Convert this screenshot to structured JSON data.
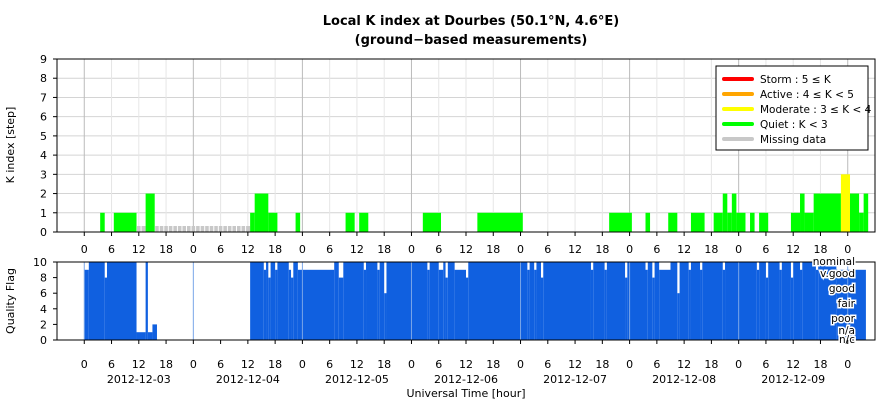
{
  "chart_data": [
    {
      "type": "bar",
      "title": "Local K index at Dourbes (50.1°N, 4.6°E)",
      "subtitle": "(ground−based measurements)",
      "ylabel": "K index [step]",
      "ylim": [
        0,
        9
      ],
      "yticks": [
        "0",
        "1",
        "2",
        "3",
        "4",
        "5",
        "6",
        "7",
        "8",
        "9"
      ],
      "x_range_hours": [
        -6,
        174
      ],
      "hour_ticks": [
        "0",
        "6",
        "12",
        "18",
        "0",
        "6",
        "12",
        "18",
        "0",
        "6",
        "12",
        "18",
        "0",
        "6",
        "12",
        "18",
        "0",
        "6",
        "12",
        "18",
        "0",
        "6",
        "12",
        "18",
        "0",
        "6",
        "12",
        "18",
        "0"
      ],
      "grid": true,
      "legend_position": "top-right",
      "legend": [
        {
          "label": "Storm : 5 ≤ K",
          "color": "#ff0000"
        },
        {
          "label": "Active : 4 ≤ K < 5",
          "color": "#ffa500"
        },
        {
          "label": "Moderate : 3 ≤ K < 4",
          "color": "#ffff00"
        },
        {
          "label": "Quiet : K < 3",
          "color": "#00ff00"
        },
        {
          "label": "Missing data",
          "color": "#c8c8c8"
        }
      ],
      "k_bars": [
        {
          "start": 3.5,
          "end": 4.5,
          "k": 1
        },
        {
          "start": 6.5,
          "end": 11.5,
          "k": 1
        },
        {
          "start": 13.5,
          "end": 15.5,
          "k": 2
        },
        {
          "start": 36.5,
          "end": 37.5,
          "k": 1
        },
        {
          "start": 37.5,
          "end": 40.5,
          "k": 2
        },
        {
          "start": 40.5,
          "end": 42.5,
          "k": 1
        },
        {
          "start": 46.5,
          "end": 47.5,
          "k": 1
        },
        {
          "start": 57.5,
          "end": 59.5,
          "k": 1
        },
        {
          "start": 60.5,
          "end": 62.5,
          "k": 1
        },
        {
          "start": 74.5,
          "end": 78.5,
          "k": 1
        },
        {
          "start": 86.5,
          "end": 96.5,
          "k": 1
        },
        {
          "start": 115.5,
          "end": 120.5,
          "k": 1
        },
        {
          "start": 123.5,
          "end": 124.5,
          "k": 1
        },
        {
          "start": 128.5,
          "end": 130.5,
          "k": 1
        },
        {
          "start": 133.5,
          "end": 136.5,
          "k": 1
        },
        {
          "start": 138.5,
          "end": 140.5,
          "k": 1
        },
        {
          "start": 140.5,
          "end": 141.5,
          "k": 2
        },
        {
          "start": 141.5,
          "end": 142.5,
          "k": 1
        },
        {
          "start": 142.5,
          "end": 143.5,
          "k": 2
        },
        {
          "start": 143.5,
          "end": 145.5,
          "k": 1
        },
        {
          "start": 146.5,
          "end": 147.5,
          "k": 1
        },
        {
          "start": 148.5,
          "end": 150.5,
          "k": 1
        },
        {
          "start": 155.5,
          "end": 157.5,
          "k": 1
        },
        {
          "start": 157.5,
          "end": 158.5,
          "k": 2
        },
        {
          "start": 158.5,
          "end": 160.5,
          "k": 1
        },
        {
          "start": 160.5,
          "end": 166.5,
          "k": 2
        },
        {
          "start": 166.5,
          "end": 168.5,
          "k": 3
        },
        {
          "start": 168.5,
          "end": 170.5,
          "k": 2
        },
        {
          "start": 170.5,
          "end": 171.5,
          "k": 1
        },
        {
          "start": 171.5,
          "end": 172.5,
          "k": 2
        }
      ],
      "missing_ranges": [
        {
          "start": 11.5,
          "end": 13.5
        },
        {
          "start": 15.5,
          "end": 36.5
        }
      ]
    },
    {
      "type": "bar",
      "ylabel": "Quality Flag",
      "ylim": [
        0,
        10
      ],
      "yticks": [
        "0",
        "2",
        "4",
        "6",
        "8",
        "10"
      ],
      "xlabel": "Universal Time [hour]",
      "bar_color": "#1060e0",
      "flag_labels": [
        "nominal",
        "v.good",
        "good",
        "fair",
        "poor",
        "n/a",
        "n/c"
      ],
      "day_labels": [
        "2012-12-03",
        "2012-12-04",
        "2012-12-05",
        "2012-12-06",
        "2012-12-07",
        "2012-12-08",
        "2012-12-09"
      ],
      "default_quality": 10,
      "quality_segments": [
        {
          "start": 0,
          "end": 1,
          "q": 9
        },
        {
          "start": 4.5,
          "end": 5,
          "q": 8
        },
        {
          "start": 11.5,
          "end": 13.5,
          "q": 1
        },
        {
          "start": 13.5,
          "end": 14,
          "q": 10
        },
        {
          "start": 14,
          "end": 15,
          "q": 1
        },
        {
          "start": 15,
          "end": 16,
          "q": 2
        },
        {
          "start": 16,
          "end": 17,
          "q": 0
        },
        {
          "start": 17,
          "end": 36.5,
          "q": 0
        },
        {
          "start": 39.5,
          "end": 40,
          "q": 9
        },
        {
          "start": 40.5,
          "end": 41,
          "q": 8
        },
        {
          "start": 42,
          "end": 42.5,
          "q": 9
        },
        {
          "start": 45,
          "end": 45.5,
          "q": 9
        },
        {
          "start": 45.5,
          "end": 46,
          "q": 8
        },
        {
          "start": 47,
          "end": 55,
          "q": 9
        },
        {
          "start": 56,
          "end": 57,
          "q": 8
        },
        {
          "start": 61.5,
          "end": 62,
          "q": 9
        },
        {
          "start": 64.5,
          "end": 65,
          "q": 9
        },
        {
          "start": 66,
          "end": 66.5,
          "q": 6
        },
        {
          "start": 75.5,
          "end": 76,
          "q": 9
        },
        {
          "start": 78,
          "end": 79,
          "q": 9
        },
        {
          "start": 79.5,
          "end": 80,
          "q": 8
        },
        {
          "start": 81.5,
          "end": 84,
          "q": 9
        },
        {
          "start": 84,
          "end": 84.5,
          "q": 8
        },
        {
          "start": 97.5,
          "end": 98,
          "q": 9
        },
        {
          "start": 99,
          "end": 99.5,
          "q": 9
        },
        {
          "start": 100.5,
          "end": 101,
          "q": 8
        },
        {
          "start": 111.5,
          "end": 112,
          "q": 9
        },
        {
          "start": 114.5,
          "end": 115,
          "q": 9
        },
        {
          "start": 119,
          "end": 119.5,
          "q": 8
        },
        {
          "start": 123.5,
          "end": 124,
          "q": 9
        },
        {
          "start": 125,
          "end": 125.5,
          "q": 8
        },
        {
          "start": 126.5,
          "end": 129,
          "q": 9
        },
        {
          "start": 130.5,
          "end": 131,
          "q": 6
        },
        {
          "start": 133,
          "end": 133.5,
          "q": 9
        },
        {
          "start": 135.5,
          "end": 136,
          "q": 9
        },
        {
          "start": 140.5,
          "end": 141,
          "q": 9
        },
        {
          "start": 148,
          "end": 148.5,
          "q": 9
        },
        {
          "start": 150,
          "end": 150.5,
          "q": 8
        },
        {
          "start": 153,
          "end": 153.5,
          "q": 9
        },
        {
          "start": 155.5,
          "end": 156,
          "q": 8
        },
        {
          "start": 157.5,
          "end": 158,
          "q": 9
        },
        {
          "start": 161,
          "end": 161.5,
          "q": 9
        },
        {
          "start": 165.5,
          "end": 172,
          "q": 9
        },
        {
          "start": 172,
          "end": 174,
          "q": 0
        }
      ]
    }
  ]
}
